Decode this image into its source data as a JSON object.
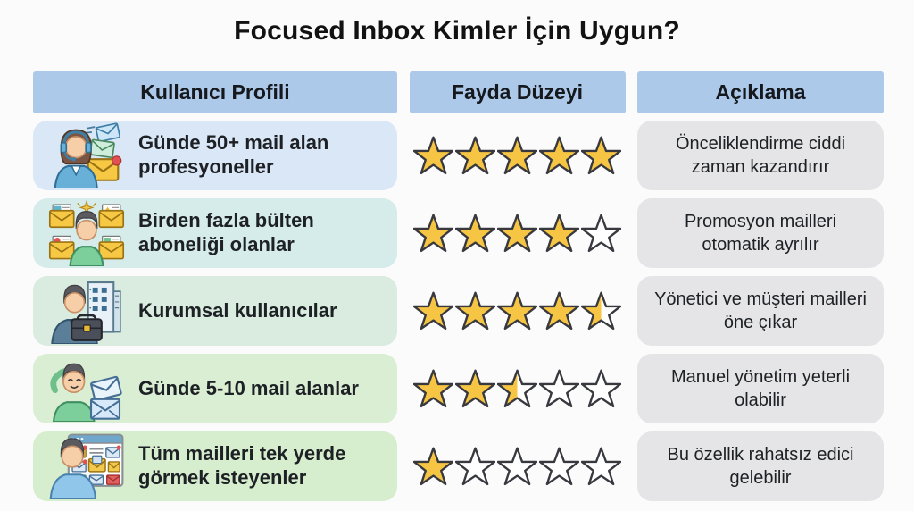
{
  "page": {
    "title": "Focused Inbox Kimler İçin Uygun?",
    "background": "#fbfbfc"
  },
  "colors": {
    "header_bg": "#adc9e9",
    "header_text": "#15181d",
    "explanation_bg": "#e5e5e7",
    "star_fill": "#f6c544",
    "star_empty": "#ffffff",
    "star_outline": "#38393f",
    "title_text": "#121212",
    "body_text": "#1d2024"
  },
  "table": {
    "headers": [
      "Kullanıcı Profili",
      "Fayda Düzeyi",
      "Açıklama"
    ],
    "rows": [
      {
        "icon": "support-agent-with-emails-icon",
        "profile": "Günde 50+ mail alan profesyoneller",
        "rating": 5,
        "max_rating": 5,
        "explanation": "Önceliklendirme ciddi zaman kazandırır",
        "row_color": "#dae7f6"
      },
      {
        "icon": "newsletter-subscriber-icon",
        "profile": "Birden fazla bülten aboneliği olanlar",
        "rating": 4,
        "max_rating": 5,
        "explanation": "Promosyon mailleri otomatik ayrılır",
        "row_color": "#d6eceb"
      },
      {
        "icon": "corporate-user-icon",
        "profile": "Kurumsal kullanıcılar",
        "rating": 4.5,
        "max_rating": 5,
        "explanation": "Yönetici ve müşteri mailleri öne çıkar",
        "row_color": "#d9ecdf"
      },
      {
        "icon": "casual-user-few-emails-icon",
        "profile": "Günde 5-10 mail alanlar",
        "rating": 2.5,
        "max_rating": 5,
        "explanation": "Manuel yönetim yeterli olabilir",
        "row_color": "#d9eed3"
      },
      {
        "icon": "all-mail-single-view-icon",
        "profile": "Tüm mailleri tek yerde görmek isteyenler",
        "rating": 1,
        "max_rating": 5,
        "explanation": "Bu özellik rahatsız edici gelebilir",
        "row_color": "#d6eecd"
      }
    ]
  },
  "chart_data": {
    "type": "table",
    "title": "Focused Inbox Kimler İçin Uygun?",
    "columns": [
      "Kullanıcı Profili",
      "Fayda Düzeyi",
      "Açıklama"
    ],
    "rows": [
      [
        "Günde 50+ mail alan profesyoneller",
        "5/5",
        "Önceliklendirme ciddi zaman kazandırır"
      ],
      [
        "Birden fazla bülten aboneliği olanlar",
        "4/5",
        "Promosyon mailleri otomatik ayrılır"
      ],
      [
        "Kurumsal kullanıcılar",
        "4.5/5",
        "Yönetici ve müşteri mailleri öne çıkar"
      ],
      [
        "Günde 5-10 mail alanlar",
        "2.5/5",
        "Manuel yönetim yeterli olabilir"
      ],
      [
        "Tüm mailleri tek yerde görmek isteyenler",
        "1/5",
        "Bu özellik rahatsız edici gelebilir"
      ]
    ],
    "ratings": [
      5,
      4,
      4.5,
      2.5,
      1
    ],
    "rating_max": 5,
    "legend_position": "none",
    "grid": false
  }
}
